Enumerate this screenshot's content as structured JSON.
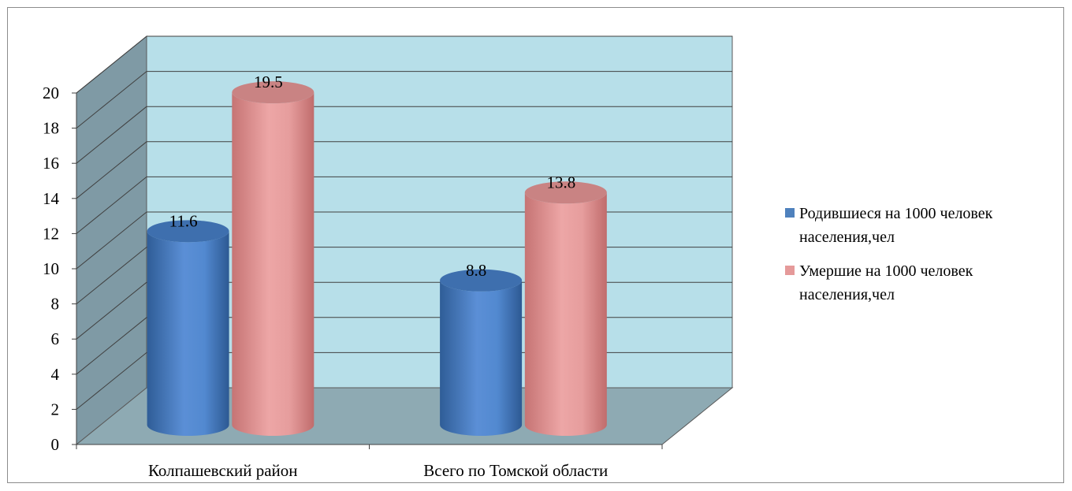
{
  "chart_data": {
    "type": "bar",
    "style": "3d-cylinder",
    "categories": [
      "Колпашевский район",
      "Всего по Томской области"
    ],
    "series": [
      {
        "name": "Родившиеся на 1000 человек населения,чел",
        "values": [
          11.6,
          8.8
        ],
        "color": "#4f81bd"
      },
      {
        "name": "Умершие на 1000 человек населения,чел",
        "values": [
          19.5,
          13.8
        ],
        "color": "#e59a9a"
      }
    ],
    "data_labels": [
      "11.6",
      "8.8",
      "19.5",
      "13.8"
    ],
    "ylim": [
      0,
      20
    ],
    "yticks": [
      "0",
      "2",
      "4",
      "6",
      "8",
      "10",
      "12",
      "14",
      "16",
      "18",
      "20"
    ],
    "grid": true,
    "legend": "right",
    "colors": {
      "wall": "#b7dfe9",
      "side_wall": "#7f9aa5",
      "floor": "#8eaab3",
      "grid": "#404040"
    }
  },
  "legend": {
    "items": [
      {
        "line1": "Родившиеся на 1000 человек",
        "line2": "населения,чел"
      },
      {
        "line1": "Умершие на 1000 человек",
        "line2": "населения,чел"
      }
    ]
  }
}
